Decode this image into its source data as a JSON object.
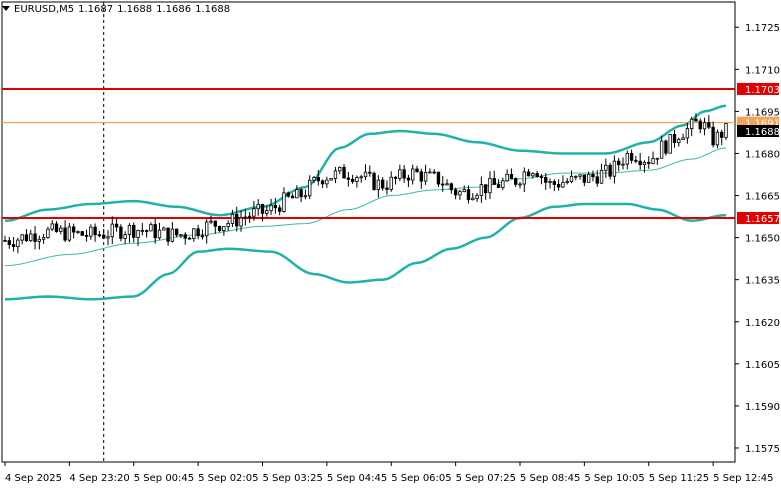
{
  "header": {
    "symbol": "EURUSD,M5",
    "open": "1.1687",
    "high": "1.1688",
    "low": "1.1686",
    "close": "1.1688"
  },
  "colors": {
    "background": "#ffffff",
    "grid": "#000000",
    "candle": "#000000",
    "bollinger": "#20b2aa",
    "ma": "#3cb8b0",
    "level_red": "#e00000",
    "level_orange": "#f5a35a",
    "price_label": "#000000"
  },
  "chart_data": {
    "type": "candlestick",
    "symbol": "EURUSD",
    "timeframe": "M5",
    "ylim": [
      1.157,
      1.1734
    ],
    "y_ticks": [
      "1.1725",
      "1.1710",
      "1.1695",
      "1.1680",
      "1.1665",
      "1.1650",
      "1.1635",
      "1.1620",
      "1.1605",
      "1.1590",
      "1.1575"
    ],
    "x_ticks": [
      "4 Sep 2025",
      "4 Sep 23:20",
      "5 Sep 00:45",
      "5 Sep 02:05",
      "5 Sep 03:25",
      "5 Sep 04:45",
      "5 Sep 06:05",
      "5 Sep 07:25",
      "5 Sep 08:45",
      "5 Sep 10:05",
      "5 Sep 11:25",
      "5 Sep 12:45"
    ],
    "x_tick_index": [
      0,
      15,
      30,
      45,
      60,
      75,
      90,
      105,
      120,
      135,
      150,
      165
    ],
    "vertical_marker_index": 23,
    "levels": [
      {
        "price": 1.1703,
        "label": "1.1703",
        "color": "#e00000"
      },
      {
        "price": 1.1691,
        "label": "1.1691",
        "color": "#f5a35a"
      },
      {
        "price": 1.1657,
        "label": "1.1657",
        "color": "#e00000"
      }
    ],
    "current_price": {
      "price": 1.1688,
      "label": "1.1688"
    },
    "close_path": [
      [
        0,
        1.1649
      ],
      [
        10,
        1.1652
      ],
      [
        20,
        1.1651
      ],
      [
        30,
        1.1653
      ],
      [
        40,
        1.1651
      ],
      [
        50,
        1.1655
      ],
      [
        60,
        1.1659
      ],
      [
        67,
        1.1664
      ],
      [
        75,
        1.1672
      ],
      [
        80,
        1.1673
      ],
      [
        88,
        1.1669
      ],
      [
        95,
        1.1673
      ],
      [
        100,
        1.1671
      ],
      [
        106,
        1.1666
      ],
      [
        112,
        1.1668
      ],
      [
        118,
        1.167
      ],
      [
        123,
        1.1675
      ],
      [
        127,
        1.1669
      ],
      [
        131,
        1.167
      ],
      [
        135,
        1.1671
      ],
      [
        140,
        1.1673
      ],
      [
        146,
        1.168
      ],
      [
        150,
        1.1678
      ],
      [
        154,
        1.1683
      ],
      [
        158,
        1.1688
      ],
      [
        162,
        1.1691
      ],
      [
        165,
        1.1685
      ],
      [
        168,
        1.1688
      ]
    ],
    "bollinger_upper_path": [
      [
        0,
        1.1656
      ],
      [
        10,
        1.166
      ],
      [
        20,
        1.1662
      ],
      [
        30,
        1.1663
      ],
      [
        40,
        1.1661
      ],
      [
        50,
        1.1658
      ],
      [
        60,
        1.1661
      ],
      [
        70,
        1.1668
      ],
      [
        78,
        1.1682
      ],
      [
        85,
        1.1687
      ],
      [
        92,
        1.1688
      ],
      [
        100,
        1.1687
      ],
      [
        110,
        1.1684
      ],
      [
        120,
        1.1681
      ],
      [
        130,
        1.168
      ],
      [
        140,
        1.168
      ],
      [
        150,
        1.1684
      ],
      [
        158,
        1.169
      ],
      [
        163,
        1.1695
      ],
      [
        168,
        1.1697
      ]
    ],
    "bollinger_middle_path": [
      [
        0,
        1.164
      ],
      [
        15,
        1.1644
      ],
      [
        30,
        1.1648
      ],
      [
        45,
        1.1651
      ],
      [
        60,
        1.1654
      ],
      [
        70,
        1.1655
      ],
      [
        80,
        1.166
      ],
      [
        90,
        1.1665
      ],
      [
        100,
        1.1667
      ],
      [
        110,
        1.1668
      ],
      [
        120,
        1.1671
      ],
      [
        130,
        1.1673
      ],
      [
        140,
        1.1673
      ],
      [
        150,
        1.1674
      ],
      [
        160,
        1.1678
      ],
      [
        168,
        1.1682
      ]
    ],
    "bollinger_lower_path": [
      [
        0,
        1.1628
      ],
      [
        10,
        1.1629
      ],
      [
        20,
        1.1628
      ],
      [
        30,
        1.1629
      ],
      [
        38,
        1.1637
      ],
      [
        45,
        1.1645
      ],
      [
        52,
        1.1646
      ],
      [
        62,
        1.1645
      ],
      [
        72,
        1.1637
      ],
      [
        80,
        1.1634
      ],
      [
        88,
        1.1635
      ],
      [
        96,
        1.1641
      ],
      [
        104,
        1.1646
      ],
      [
        112,
        1.165
      ],
      [
        120,
        1.1657
      ],
      [
        128,
        1.1661
      ],
      [
        135,
        1.1662
      ],
      [
        145,
        1.1662
      ],
      [
        152,
        1.166
      ],
      [
        160,
        1.1656
      ],
      [
        168,
        1.1658
      ]
    ]
  }
}
